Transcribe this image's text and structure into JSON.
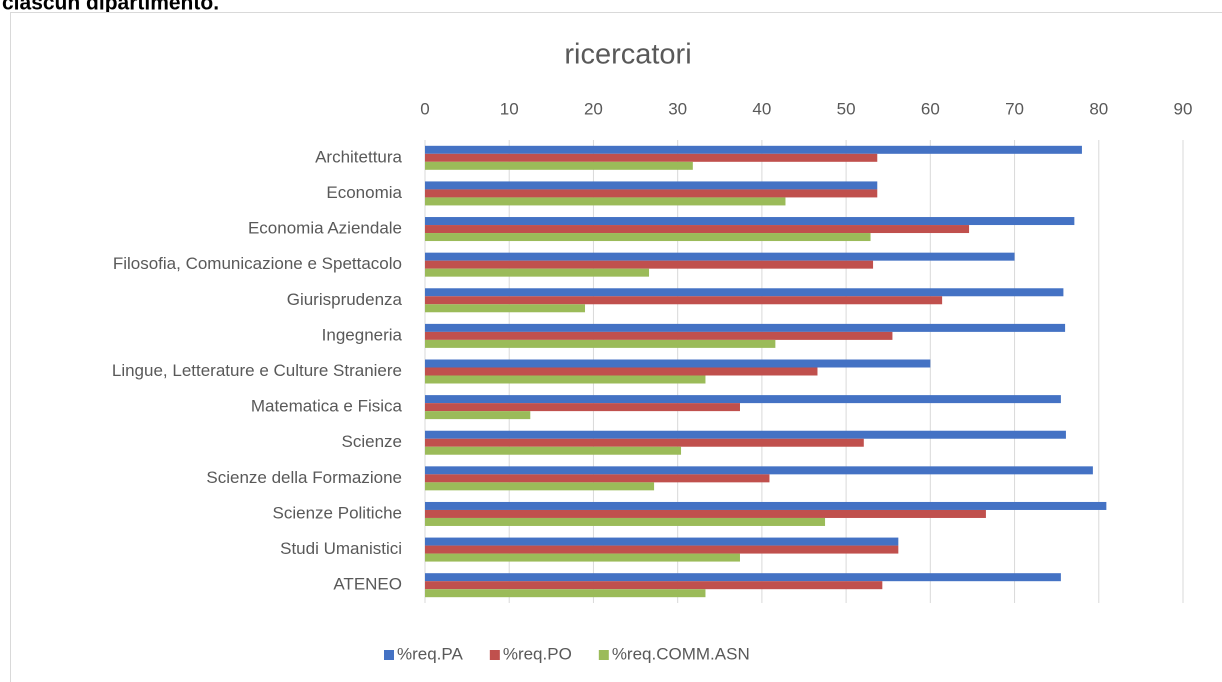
{
  "page_text": "ciascun dipartimento.",
  "chart_data": {
    "type": "hbar",
    "title": "ricercatori",
    "categories": [
      "Architettura",
      "Economia",
      "Economia Aziendale",
      "Filosofia, Comunicazione e Spettacolo",
      "Giurisprudenza",
      "Ingegneria",
      "Lingue, Letterature e Culture Straniere",
      "Matematica e Fisica",
      "Scienze",
      "Scienze della Formazione",
      "Scienze Politiche",
      "Studi Umanistici",
      "ATENEO"
    ],
    "series": [
      {
        "name": "%req.PA",
        "color": "#4472c4",
        "values": [
          78.0,
          53.7,
          77.1,
          70.0,
          75.8,
          76.0,
          60.0,
          75.5,
          76.1,
          79.3,
          80.9,
          56.2,
          75.5
        ]
      },
      {
        "name": "%req.PO",
        "color": "#c0504d",
        "values": [
          53.7,
          53.7,
          64.6,
          53.2,
          61.4,
          55.5,
          46.6,
          37.4,
          52.1,
          40.9,
          66.6,
          56.2,
          54.3
        ]
      },
      {
        "name": "%req.COMM.ASN",
        "color": "#9bbb59",
        "values": [
          31.8,
          42.8,
          52.9,
          26.6,
          19.0,
          41.6,
          33.3,
          12.5,
          30.4,
          27.2,
          47.5,
          37.4,
          33.3
        ]
      }
    ],
    "xlim": [
      0,
      90
    ],
    "xticks": [
      0,
      10,
      20,
      30,
      40,
      50,
      60,
      70,
      80,
      90
    ],
    "grid": true,
    "legend": "bottom"
  }
}
